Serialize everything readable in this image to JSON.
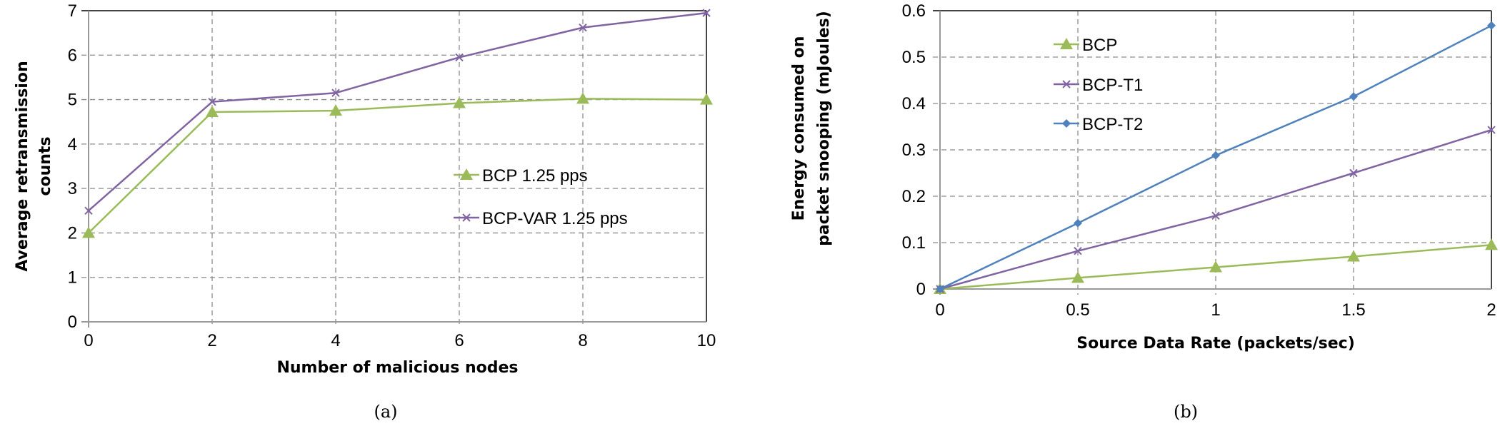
{
  "chart_data": [
    {
      "type": "line",
      "caption": "(a)",
      "xlabel": "Number of malicious nodes",
      "ylabel": [
        "Average retransmission",
        "counts"
      ],
      "x": [
        0,
        2,
        4,
        6,
        8,
        10
      ],
      "xticks": [
        "0",
        "2",
        "4",
        "6",
        "8",
        "10"
      ],
      "yticks": [
        "0",
        "1",
        "2",
        "3",
        "4",
        "5",
        "6",
        "7"
      ],
      "xlim": [
        0,
        10
      ],
      "ylim": [
        0,
        7
      ],
      "grid": true,
      "legend": "center-right",
      "series": [
        {
          "name": "BCP 1.25 pps",
          "color": "#9bbb59",
          "marker": "triangle",
          "values": [
            2.0,
            4.72,
            4.75,
            4.92,
            5.02,
            5.0
          ]
        },
        {
          "name": "BCP-VAR 1.25 pps",
          "color": "#8064a2",
          "marker": "x",
          "values": [
            2.5,
            4.95,
            5.15,
            5.95,
            6.62,
            6.95
          ]
        }
      ]
    },
    {
      "type": "line",
      "caption": "(b)",
      "xlabel": "Source Data Rate (packets/sec)",
      "ylabel": [
        "Energy consumed on",
        "packet snooping (mJoules)"
      ],
      "x": [
        0,
        0.5,
        1,
        1.5,
        2
      ],
      "xticks": [
        "0",
        "0.5",
        "1",
        "1.5",
        "2"
      ],
      "yticks": [
        "0",
        "0.1",
        "0.2",
        "0.3",
        "0.4",
        "0.5",
        "0.6"
      ],
      "xlim": [
        0,
        2
      ],
      "ylim": [
        0,
        0.6
      ],
      "grid": true,
      "legend": "top-left",
      "series": [
        {
          "name": "BCP",
          "color": "#9bbb59",
          "marker": "triangle",
          "values": [
            0,
            0.024,
            0.047,
            0.07,
            0.095
          ]
        },
        {
          "name": "BCP-T1",
          "color": "#8064a2",
          "marker": "x",
          "values": [
            0,
            0.082,
            0.158,
            0.25,
            0.343
          ]
        },
        {
          "name": "BCP-T2",
          "color": "#4f81bd",
          "marker": "diamond",
          "values": [
            0,
            0.142,
            0.288,
            0.415,
            0.568
          ]
        }
      ]
    }
  ]
}
